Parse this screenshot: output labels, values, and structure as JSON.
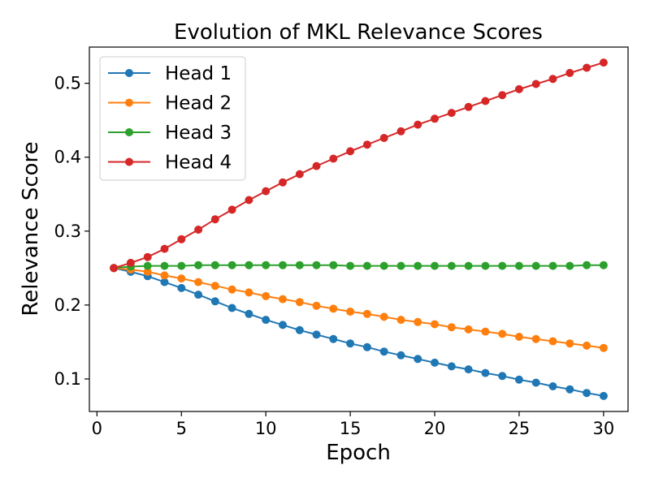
{
  "chart_data": {
    "type": "line",
    "title": "Evolution of MKL Relevance Scores",
    "xlabel": "Epoch",
    "ylabel": "Relevance Score",
    "xlim": [
      -0.45,
      31.45
    ],
    "ylim": [
      0.056,
      0.549
    ],
    "xticks": [
      0,
      5,
      10,
      15,
      20,
      25,
      30
    ],
    "xtick_labels": [
      "0",
      "5",
      "10",
      "15",
      "20",
      "25",
      "30"
    ],
    "yticks": [
      0.1,
      0.2,
      0.3,
      0.4,
      0.5
    ],
    "ytick_labels": [
      "0.1",
      "0.2",
      "0.3",
      "0.4",
      "0.5"
    ],
    "grid": false,
    "legend_position": "top-left",
    "x": [
      1,
      2,
      3,
      4,
      5,
      6,
      7,
      8,
      9,
      10,
      11,
      12,
      13,
      14,
      15,
      16,
      17,
      18,
      19,
      20,
      21,
      22,
      23,
      24,
      25,
      26,
      27,
      28,
      29,
      30
    ],
    "series": [
      {
        "name": "Head 1",
        "color": "#1f77b4",
        "values": [
          0.25,
          0.245,
          0.239,
          0.231,
          0.223,
          0.214,
          0.205,
          0.196,
          0.188,
          0.18,
          0.173,
          0.166,
          0.16,
          0.154,
          0.148,
          0.143,
          0.137,
          0.132,
          0.127,
          0.122,
          0.117,
          0.113,
          0.108,
          0.104,
          0.099,
          0.095,
          0.09,
          0.086,
          0.081,
          0.077
        ]
      },
      {
        "name": "Head 2",
        "color": "#ff7f0e",
        "values": [
          0.25,
          0.248,
          0.245,
          0.24,
          0.236,
          0.231,
          0.226,
          0.221,
          0.217,
          0.212,
          0.208,
          0.204,
          0.199,
          0.195,
          0.191,
          0.188,
          0.184,
          0.18,
          0.177,
          0.174,
          0.17,
          0.167,
          0.164,
          0.161,
          0.157,
          0.154,
          0.151,
          0.148,
          0.145,
          0.142
        ]
      },
      {
        "name": "Head 3",
        "color": "#2ca02c",
        "values": [
          0.25,
          0.252,
          0.253,
          0.253,
          0.253,
          0.254,
          0.254,
          0.254,
          0.254,
          0.254,
          0.254,
          0.254,
          0.254,
          0.254,
          0.253,
          0.253,
          0.253,
          0.253,
          0.253,
          0.253,
          0.253,
          0.253,
          0.253,
          0.253,
          0.253,
          0.253,
          0.253,
          0.253,
          0.254,
          0.254
        ]
      },
      {
        "name": "Head 4",
        "color": "#d62728",
        "values": [
          0.25,
          0.257,
          0.265,
          0.276,
          0.289,
          0.302,
          0.316,
          0.329,
          0.342,
          0.354,
          0.366,
          0.377,
          0.388,
          0.398,
          0.408,
          0.417,
          0.426,
          0.435,
          0.444,
          0.452,
          0.46,
          0.468,
          0.476,
          0.484,
          0.492,
          0.499,
          0.506,
          0.514,
          0.521,
          0.528
        ]
      }
    ]
  }
}
